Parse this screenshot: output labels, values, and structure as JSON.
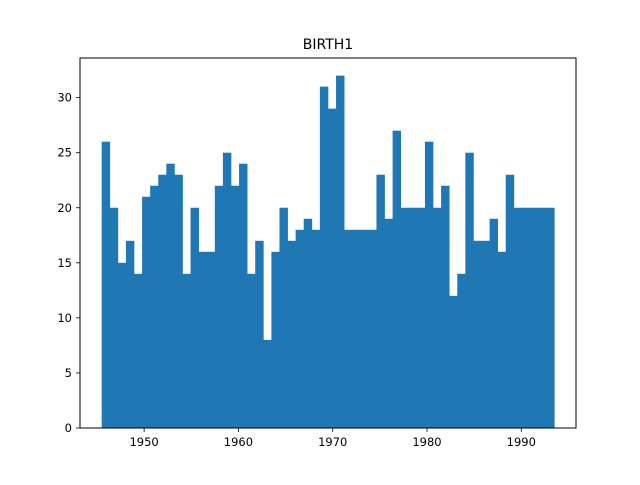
{
  "chart_data": {
    "type": "bar",
    "title": "BIRTH1",
    "xlabel": "",
    "ylabel": "",
    "xlim": [
      1943.2,
      1995.8
    ],
    "ylim": [
      0,
      33.6
    ],
    "grid": false,
    "bar_color": "#1f77b4",
    "bins": {
      "start": 1945.5,
      "width": 0.857,
      "count": 56
    },
    "x_ticks": [
      {
        "value": 1950,
        "label": "1950"
      },
      {
        "value": 1960,
        "label": "1960"
      },
      {
        "value": 1970,
        "label": "1970"
      },
      {
        "value": 1980,
        "label": "1980"
      },
      {
        "value": 1990,
        "label": "1990"
      }
    ],
    "y_ticks": [
      {
        "value": 0,
        "label": "0"
      },
      {
        "value": 5,
        "label": "5"
      },
      {
        "value": 10,
        "label": "10"
      },
      {
        "value": 15,
        "label": "15"
      },
      {
        "value": 20,
        "label": "20"
      },
      {
        "value": 25,
        "label": "25"
      },
      {
        "value": 30,
        "label": "30"
      }
    ],
    "values": [
      26,
      20,
      15,
      17,
      14,
      21,
      22,
      23,
      24,
      23,
      14,
      20,
      16,
      16,
      22,
      25,
      22,
      24,
      14,
      17,
      8,
      16,
      20,
      17,
      18,
      19,
      18,
      31,
      29,
      32,
      18,
      18,
      18,
      18,
      23,
      19,
      27,
      20,
      20,
      20,
      26,
      20,
      22,
      12,
      14,
      25,
      17,
      17,
      19,
      16,
      23,
      20,
      20,
      20,
      20,
      20
    ]
  }
}
